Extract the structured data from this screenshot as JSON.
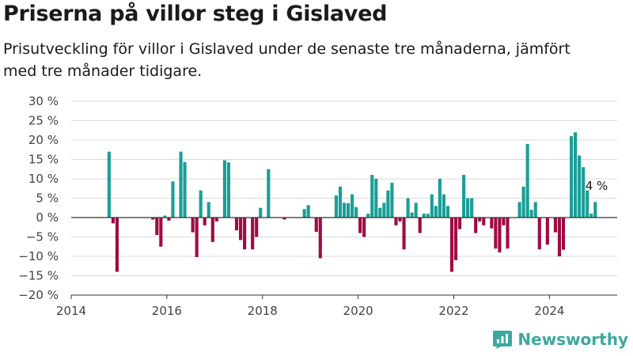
{
  "title": "Priserna på villor steg i Gislaved",
  "subtitle": "Prisutveckling för villor i Gislaved under de senaste tre månaderna, jämfört med tre månader tidigare.",
  "brand": {
    "name": "Newsworthy",
    "icon": "newsworthy-logo-icon"
  },
  "colors": {
    "positive": "#1a9e96",
    "negative": "#a10a44",
    "grid": "#d9d9d9",
    "zero_line": "#333333",
    "text": "#1a1a1a",
    "tick": "#444444"
  },
  "chart_data": {
    "type": "bar",
    "title": "Priserna på villor steg i Gislaved",
    "subtitle": "Prisutveckling för villor i Gislaved under de senaste tre månaderna, jämfört med tre månader tidigare.",
    "xlabel": "",
    "ylabel": "",
    "xlim": [
      "2014-01",
      "2025-06"
    ],
    "ylim": [
      -20,
      30
    ],
    "y_ticks": [
      30,
      25,
      20,
      15,
      10,
      5,
      0,
      -5,
      -10,
      -15,
      -20
    ],
    "y_tick_labels": [
      "30 %",
      "25 %",
      "20 %",
      "15 %",
      "10 %",
      "5 %",
      "0 %",
      "−5 %",
      "−10 %",
      "−15 %",
      "−20 %"
    ],
    "x_ticks": [
      "2014-01",
      "2016-01",
      "2018-01",
      "2020-01",
      "2022-01",
      "2024-01"
    ],
    "x_tick_labels": [
      "2014",
      "2016",
      "2018",
      "2020",
      "2022",
      "2024"
    ],
    "grid": true,
    "unit": "%",
    "annotations": [
      {
        "x": "2024-10",
        "y": 4,
        "text": "4 %"
      }
    ],
    "points": [
      {
        "x": "2014-10",
        "y": 17
      },
      {
        "x": "2014-11",
        "y": -1.5
      },
      {
        "x": "2014-12",
        "y": -14
      },
      {
        "x": "2015-09",
        "y": -0.5
      },
      {
        "x": "2015-10",
        "y": -4.5
      },
      {
        "x": "2015-11",
        "y": -7.5
      },
      {
        "x": "2015-12",
        "y": 0.5
      },
      {
        "x": "2016-01",
        "y": -0.8
      },
      {
        "x": "2016-02",
        "y": 9.3
      },
      {
        "x": "2016-04",
        "y": 17
      },
      {
        "x": "2016-05",
        "y": 14.3
      },
      {
        "x": "2016-07",
        "y": -3.8
      },
      {
        "x": "2016-08",
        "y": -10.2
      },
      {
        "x": "2016-09",
        "y": 7
      },
      {
        "x": "2016-10",
        "y": -2
      },
      {
        "x": "2016-11",
        "y": 4
      },
      {
        "x": "2016-12",
        "y": -6.3
      },
      {
        "x": "2017-01",
        "y": -1
      },
      {
        "x": "2017-03",
        "y": 14.8
      },
      {
        "x": "2017-04",
        "y": 14.2
      },
      {
        "x": "2017-06",
        "y": -3.3
      },
      {
        "x": "2017-07",
        "y": -5.8
      },
      {
        "x": "2017-08",
        "y": -8.2
      },
      {
        "x": "2017-10",
        "y": -8.2
      },
      {
        "x": "2017-11",
        "y": -5
      },
      {
        "x": "2017-12",
        "y": 2.5
      },
      {
        "x": "2018-02",
        "y": 12.5
      },
      {
        "x": "2018-06",
        "y": -0.5
      },
      {
        "x": "2018-11",
        "y": 2.2
      },
      {
        "x": "2018-12",
        "y": 3.2
      },
      {
        "x": "2019-02",
        "y": -3.7
      },
      {
        "x": "2019-03",
        "y": -10.5
      },
      {
        "x": "2019-07",
        "y": 5.7
      },
      {
        "x": "2019-08",
        "y": 8
      },
      {
        "x": "2019-09",
        "y": 3.8
      },
      {
        "x": "2019-10",
        "y": 3.7
      },
      {
        "x": "2019-11",
        "y": 6
      },
      {
        "x": "2019-12",
        "y": 2.7
      },
      {
        "x": "2020-01",
        "y": -4
      },
      {
        "x": "2020-02",
        "y": -5
      },
      {
        "x": "2020-03",
        "y": 1
      },
      {
        "x": "2020-04",
        "y": 11
      },
      {
        "x": "2020-05",
        "y": 10
      },
      {
        "x": "2020-06",
        "y": 2.5
      },
      {
        "x": "2020-07",
        "y": 3.8
      },
      {
        "x": "2020-08",
        "y": 7
      },
      {
        "x": "2020-09",
        "y": 9
      },
      {
        "x": "2020-10",
        "y": -2
      },
      {
        "x": "2020-11",
        "y": -1
      },
      {
        "x": "2020-12",
        "y": -8.2
      },
      {
        "x": "2021-01",
        "y": 5
      },
      {
        "x": "2021-02",
        "y": 1.3
      },
      {
        "x": "2021-03",
        "y": 3.8
      },
      {
        "x": "2021-04",
        "y": -4
      },
      {
        "x": "2021-05",
        "y": 1
      },
      {
        "x": "2021-06",
        "y": 1
      },
      {
        "x": "2021-07",
        "y": 6
      },
      {
        "x": "2021-08",
        "y": 3
      },
      {
        "x": "2021-09",
        "y": 10
      },
      {
        "x": "2021-10",
        "y": 6
      },
      {
        "x": "2021-11",
        "y": 3
      },
      {
        "x": "2021-12",
        "y": -14
      },
      {
        "x": "2022-01",
        "y": -11
      },
      {
        "x": "2022-02",
        "y": -3
      },
      {
        "x": "2022-03",
        "y": 11
      },
      {
        "x": "2022-04",
        "y": 5
      },
      {
        "x": "2022-05",
        "y": 5
      },
      {
        "x": "2022-06",
        "y": -4
      },
      {
        "x": "2022-07",
        "y": -1
      },
      {
        "x": "2022-08",
        "y": -2
      },
      {
        "x": "2022-10",
        "y": -2.8
      },
      {
        "x": "2022-11",
        "y": -8
      },
      {
        "x": "2022-12",
        "y": -9
      },
      {
        "x": "2023-01",
        "y": -2
      },
      {
        "x": "2023-02",
        "y": -8
      },
      {
        "x": "2023-05",
        "y": 4
      },
      {
        "x": "2023-06",
        "y": 8
      },
      {
        "x": "2023-07",
        "y": 19
      },
      {
        "x": "2023-08",
        "y": 2
      },
      {
        "x": "2023-09",
        "y": 4
      },
      {
        "x": "2023-10",
        "y": -8.2
      },
      {
        "x": "2023-12",
        "y": -7
      },
      {
        "x": "2024-02",
        "y": -3.8
      },
      {
        "x": "2024-03",
        "y": -10
      },
      {
        "x": "2024-04",
        "y": -8.3
      },
      {
        "x": "2024-06",
        "y": 21
      },
      {
        "x": "2024-07",
        "y": 22
      },
      {
        "x": "2024-08",
        "y": 16
      },
      {
        "x": "2024-09",
        "y": 13
      },
      {
        "x": "2024-10",
        "y": 7
      },
      {
        "x": "2024-11",
        "y": 1
      },
      {
        "x": "2024-12",
        "y": 4
      }
    ]
  }
}
